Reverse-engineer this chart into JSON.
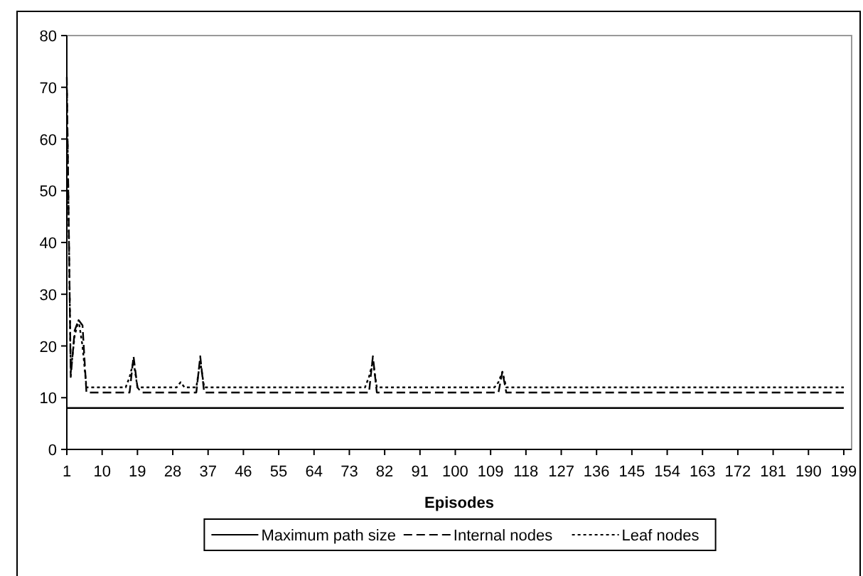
{
  "chart_data": {
    "type": "line",
    "xlabel": "Episodes",
    "xlim": [
      1,
      201
    ],
    "xticks": [
      1,
      10,
      19,
      28,
      37,
      46,
      55,
      64,
      73,
      82,
      91,
      100,
      109,
      118,
      127,
      136,
      145,
      154,
      163,
      172,
      181,
      190,
      199
    ],
    "ylim": [
      0,
      80
    ],
    "yticks": [
      0,
      10,
      20,
      30,
      40,
      50,
      60,
      70,
      80
    ],
    "legend": "bottom",
    "grid": false,
    "marker": "none",
    "series": [
      {
        "name": "Maximum path size",
        "color": "#000000",
        "line_style": "solid",
        "x": [
          1,
          199
        ],
        "values": [
          8,
          8
        ]
      },
      {
        "name": "Internal nodes",
        "color": "#000000",
        "line_style": "dashed",
        "x": [
          1,
          2,
          3,
          4,
          5,
          6,
          17,
          18,
          19,
          20,
          34,
          35,
          36,
          78,
          79,
          80,
          111,
          112,
          113,
          199
        ],
        "values": [
          72,
          14,
          23,
          25,
          24,
          11,
          11,
          18,
          12,
          11,
          11,
          18,
          11,
          11,
          18,
          11,
          11,
          15,
          11,
          11
        ]
      },
      {
        "name": "Leaf nodes",
        "color": "#000000",
        "line_style": "dotted",
        "x": [
          1,
          2,
          3,
          4,
          5,
          6,
          16,
          17,
          18,
          19,
          29,
          30,
          31,
          34,
          35,
          36,
          77,
          78,
          79,
          80,
          110,
          111,
          112,
          113,
          199
        ],
        "values": [
          70,
          15,
          22,
          25,
          20,
          12,
          12,
          14,
          17,
          12,
          12,
          13,
          12,
          12,
          17,
          12,
          12,
          14,
          17,
          12,
          12,
          13,
          15,
          12,
          12
        ]
      }
    ]
  }
}
